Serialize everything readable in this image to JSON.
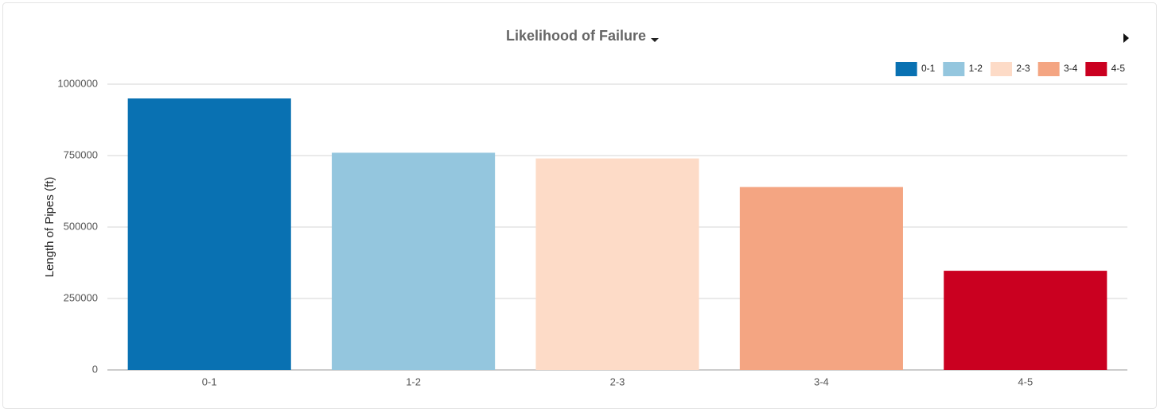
{
  "chart_data": {
    "type": "bar",
    "title": "Likelihood of Failure",
    "ylabel": "Length of Pipes (ft)",
    "categories": [
      "0-1",
      "1-2",
      "2-3",
      "3-4",
      "4-5"
    ],
    "values": [
      950000,
      760000,
      740000,
      640000,
      347000
    ],
    "colors": [
      "#0971b2",
      "#94c6de",
      "#fddbc7",
      "#f4a582",
      "#ca0020"
    ],
    "ylim": [
      0,
      1000000
    ],
    "yticks": [
      0,
      250000,
      500000,
      750000,
      1000000
    ],
    "grid": true,
    "legend": "top-right"
  }
}
